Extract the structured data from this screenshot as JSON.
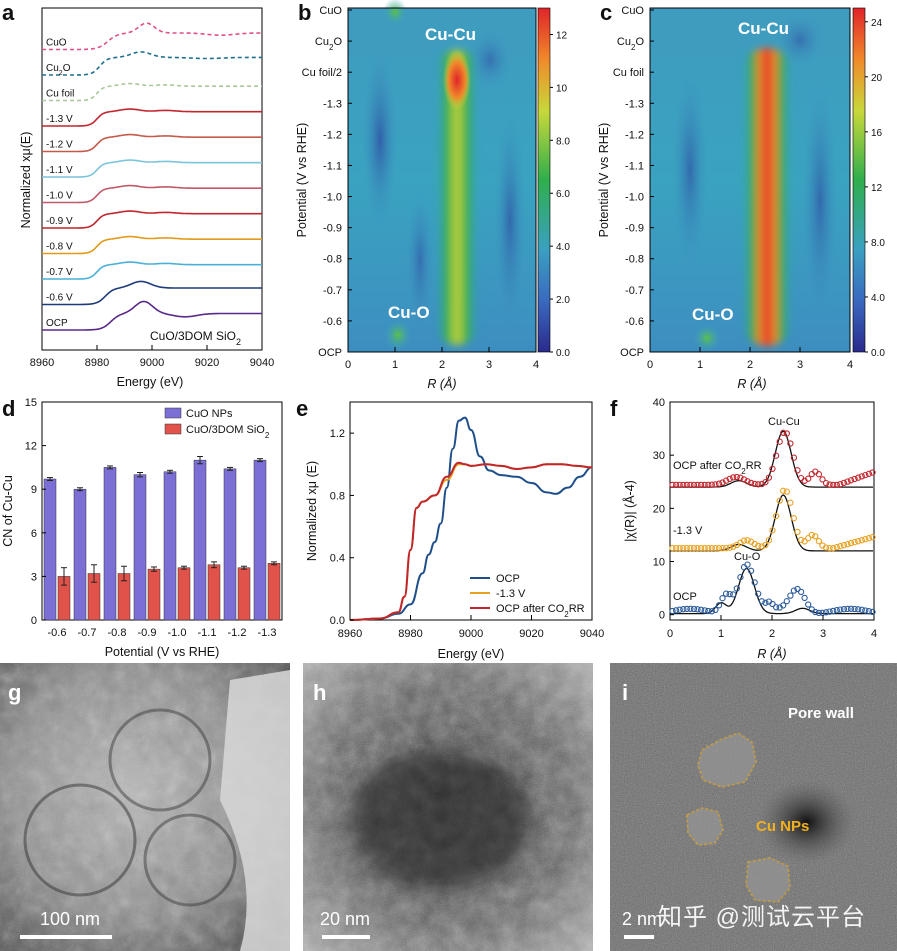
{
  "figure": {
    "panel_letters": [
      "a",
      "b",
      "c",
      "d",
      "e",
      "f",
      "g",
      "h",
      "i"
    ],
    "watermark": "知乎 @测试云平台"
  },
  "chart_data": [
    {
      "panel": "a",
      "type": "line",
      "xlabel": "Energy (eV)",
      "ylabel": "Normalized xμ(E)",
      "xlim": [
        8960,
        9040
      ],
      "xticks": [
        "8960",
        "8980",
        "9000",
        "9020",
        "9040"
      ],
      "annotation": "CuO/3DOM SiO2",
      "series": [
        {
          "name": "CuO",
          "color": "#e0508a",
          "style": "dash",
          "offset": 10.0,
          "kind": "cuo"
        },
        {
          "name": "Cu2O",
          "color": "#1f6f8f",
          "style": "dash",
          "offset": 9.0,
          "kind": "cu2o"
        },
        {
          "name": "Cu foil",
          "color": "#a8c89a",
          "style": "dash",
          "offset": 8.0,
          "kind": "foil"
        },
        {
          "name": "-1.3 V",
          "color": "#c0262d",
          "style": "solid",
          "offset": 7.0,
          "kind": "foil"
        },
        {
          "name": "-1.2 V",
          "color": "#c45a4a",
          "style": "solid",
          "offset": 6.0,
          "kind": "foil"
        },
        {
          "name": "-1.1 V",
          "color": "#7cc4dc",
          "style": "solid",
          "offset": 5.0,
          "kind": "foil"
        },
        {
          "name": "-1.0 V",
          "color": "#c05a6a",
          "style": "solid",
          "offset": 4.0,
          "kind": "foil"
        },
        {
          "name": "-0.9 V",
          "color": "#c0262d",
          "style": "solid",
          "offset": 3.0,
          "kind": "foil"
        },
        {
          "name": "-0.8 V",
          "color": "#e39a1a",
          "style": "solid",
          "offset": 2.0,
          "kind": "foil"
        },
        {
          "name": "-0.7 V",
          "color": "#4ab0d8",
          "style": "solid",
          "offset": 1.0,
          "kind": "foil"
        },
        {
          "name": "-0.6 V",
          "color": "#1e3a7a",
          "style": "solid",
          "offset": 0.0,
          "kind": "mix"
        },
        {
          "name": "OCP",
          "color": "#5a2a8a",
          "style": "solid",
          "offset": -1.0,
          "kind": "ocp"
        }
      ]
    },
    {
      "panel": "b",
      "type": "heatmap",
      "xlabel": "R (Å)",
      "ylabel": "Potential (V vs RHE)",
      "xlim": [
        0,
        4
      ],
      "xticks": [
        "0",
        "1",
        "2",
        "3",
        "4"
      ],
      "yticks": [
        "OCP",
        "-0.6 V",
        "-0.7 V",
        "-0.8 V",
        "-0.9 V",
        "-1.0 V",
        "-1.1 V",
        "-1.2 V",
        "-1.3 V",
        "Cu foil/2",
        "Cu2O",
        "CuO"
      ],
      "ytick_labels": [
        "OCP",
        "-0.6",
        "-0.7",
        "-0.8",
        "-0.9",
        "-1.0",
        "-1.1",
        "-1.2",
        "-1.3",
        "Cu foil/2",
        "Cu2O",
        "CuO"
      ],
      "colorbar": {
        "min": 0,
        "max": 13,
        "ticks": [
          "0.0",
          "2.0",
          "4.0",
          "6.0",
          "8.0",
          "10",
          "12"
        ]
      },
      "annotations": [
        "Cu-Cu",
        "Cu-O"
      ]
    },
    {
      "panel": "c",
      "type": "heatmap",
      "xlabel": "R (Å)",
      "ylabel": "Potential (V vs RHE)",
      "xlim": [
        0,
        4
      ],
      "xticks": [
        "0",
        "1",
        "2",
        "3",
        "4"
      ],
      "ytick_labels": [
        "OCP",
        "-0.6",
        "-0.7",
        "-0.8",
        "-0.9",
        "-1.0",
        "-1.1",
        "-1.2",
        "-1.3",
        "Cu foil",
        "Cu2O",
        "CuO"
      ],
      "colorbar": {
        "min": 0,
        "max": 25,
        "ticks": [
          "0.0",
          "4.0",
          "8.0",
          "12",
          "16",
          "20",
          "24"
        ]
      },
      "annotations": [
        "Cu-Cu",
        "Cu-O"
      ]
    },
    {
      "panel": "d",
      "type": "bar",
      "xlabel": "Potential (V vs RHE)",
      "ylabel": "CN of Cu-Cu",
      "ylim": [
        0,
        15
      ],
      "yticks": [
        "0",
        "3",
        "6",
        "9",
        "12",
        "15"
      ],
      "categories": [
        "-0.6",
        "-0.7",
        "-0.8",
        "-0.9",
        "-1.0",
        "-1.1",
        "-1.2",
        "-1.3"
      ],
      "series": [
        {
          "name": "CuO NPs",
          "color": "#7b6fd6",
          "values": [
            9.7,
            9.0,
            10.5,
            10.0,
            10.2,
            11.0,
            10.4,
            11.0
          ],
          "errors": [
            0.1,
            0.1,
            0.1,
            0.15,
            0.1,
            0.25,
            0.1,
            0.1
          ]
        },
        {
          "name": "CuO/3DOM SiO2",
          "color": "#e0524a",
          "values": [
            3.0,
            3.2,
            3.2,
            3.5,
            3.6,
            3.8,
            3.6,
            3.9
          ],
          "errors": [
            0.6,
            0.6,
            0.5,
            0.15,
            0.1,
            0.2,
            0.1,
            0.1
          ]
        }
      ]
    },
    {
      "panel": "e",
      "type": "line",
      "xlabel": "Energy (eV)",
      "ylabel": "Normalized xμ (E)",
      "xlim": [
        8960,
        9040
      ],
      "ylim": [
        0.0,
        1.4
      ],
      "xticks": [
        "8960",
        "8980",
        "9000",
        "9020",
        "9040"
      ],
      "yticks": [
        "0.0",
        "0.4",
        "0.8",
        "1.2"
      ],
      "series": [
        {
          "name": "OCP",
          "color": "#1f4f8a",
          "x": [
            8960,
            8970,
            8976,
            8980,
            8984,
            8986,
            8988,
            8990,
            8992,
            8994,
            8996,
            8998,
            9000,
            9003,
            9006,
            9010,
            9015,
            9020,
            9025,
            9028,
            9032,
            9036,
            9040
          ],
          "y": [
            0.0,
            0.01,
            0.04,
            0.1,
            0.3,
            0.42,
            0.5,
            0.62,
            0.85,
            1.1,
            1.28,
            1.3,
            1.22,
            1.05,
            0.96,
            0.93,
            0.92,
            0.88,
            0.82,
            0.81,
            0.85,
            0.92,
            0.98
          ]
        },
        {
          "name": "-1.3 V",
          "color": "#e8a020",
          "x": [
            8960,
            8970,
            8976,
            8978,
            8980,
            8982,
            8984,
            8988,
            8992,
            8996,
            8998,
            9000,
            9005,
            9010,
            9015,
            9020,
            9025,
            9030,
            9035,
            9040
          ],
          "y": [
            0.0,
            0.01,
            0.05,
            0.15,
            0.45,
            0.72,
            0.76,
            0.8,
            0.9,
            1.0,
            1.0,
            0.99,
            1.0,
            0.99,
            0.97,
            0.98,
            1.0,
            1.0,
            0.99,
            0.98
          ]
        },
        {
          "name": "OCP after CO2RR",
          "color": "#c0262d",
          "x": [
            8960,
            8970,
            8976,
            8978,
            8980,
            8982,
            8984,
            8988,
            8992,
            8996,
            8998,
            9000,
            9005,
            9010,
            9015,
            9020,
            9025,
            9030,
            9035,
            9040
          ],
          "y": [
            0.0,
            0.01,
            0.05,
            0.15,
            0.45,
            0.72,
            0.76,
            0.8,
            0.92,
            1.01,
            1.0,
            0.99,
            1.0,
            0.99,
            0.97,
            0.98,
            1.0,
            1.0,
            0.99,
            0.98
          ]
        }
      ]
    },
    {
      "panel": "f",
      "type": "line",
      "xlabel": "R (Å)",
      "ylabel": "|χ(R)| (Å-4)",
      "xlim": [
        0,
        4
      ],
      "ylim": [
        -1,
        40
      ],
      "xticks": [
        "0",
        "1",
        "2",
        "3",
        "4"
      ],
      "yticks": [
        "0",
        "10",
        "20",
        "30",
        "40"
      ],
      "annotations": [
        "Cu-Cu",
        "Cu-O"
      ],
      "series": [
        {
          "name": "OCP after CO2RR",
          "color": "#c0262d",
          "offset": 24
        },
        {
          "name": "-1.3 V",
          "color": "#e8a020",
          "offset": 12
        },
        {
          "name": "OCP",
          "color": "#2a5a9a",
          "offset": 0
        }
      ]
    }
  ],
  "micrographs": {
    "g": {
      "scale_bar": "100 nm"
    },
    "h": {
      "scale_bar": "20 nm"
    },
    "i": {
      "scale_bar": "2 nm",
      "labels": {
        "pore_wall": "Pore wall",
        "cu_nps": "Cu NPs"
      }
    }
  }
}
